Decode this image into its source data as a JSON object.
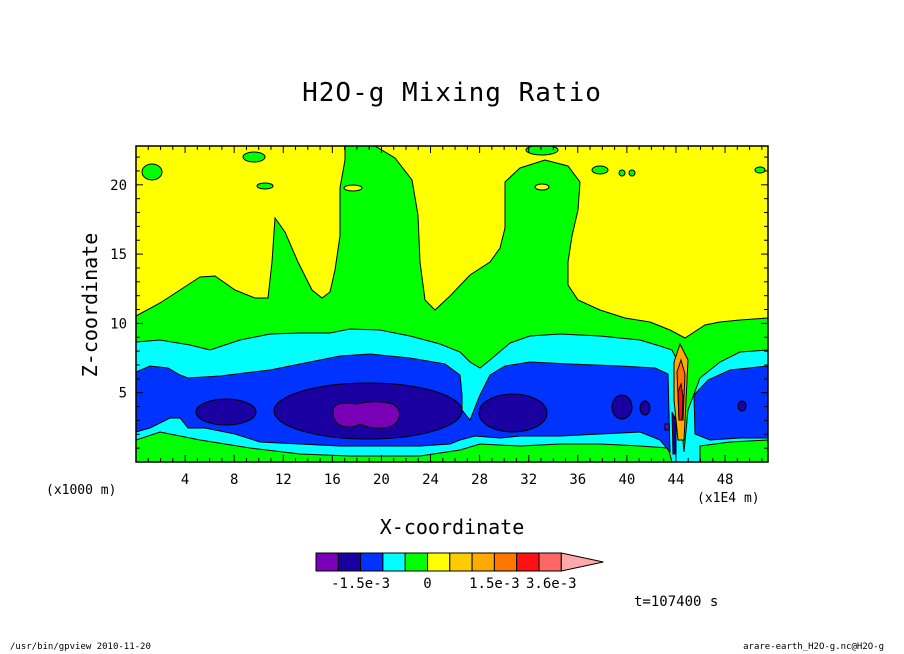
{
  "chart_data": {
    "type": "heatmap",
    "title": "H2O-g Mixing Ratio",
    "xlabel": "X-coordinate",
    "ylabel": "Z-coordinate",
    "x_unit": "(x1000 m)",
    "x_scale_label": "(x1E4 m)",
    "xlim": [
      0,
      51.5
    ],
    "ylim": [
      0,
      22.8
    ],
    "x_ticks": [
      4,
      8,
      12,
      16,
      20,
      24,
      28,
      32,
      36,
      40,
      44,
      48
    ],
    "y_ticks": [
      5,
      10,
      15,
      20
    ],
    "colorbar": {
      "colors": [
        "#7a00b8",
        "#1a00a0",
        "#0033ff",
        "#00ffff",
        "#00ff00",
        "#ffff00",
        "#ffcc00",
        "#ffaa00",
        "#ff7700",
        "#ff1111",
        "#ff6666",
        "#ffaaaa"
      ],
      "tick_labels": [
        "-1.5e-3",
        "0",
        "1.5e-3",
        "3.6e-3"
      ]
    },
    "time_label": "t=107400 s"
  },
  "footer": {
    "left": "/usr/bin/gpview   2010-11-20",
    "right": "arare-earth_H2O-g.nc@H2O-g"
  }
}
